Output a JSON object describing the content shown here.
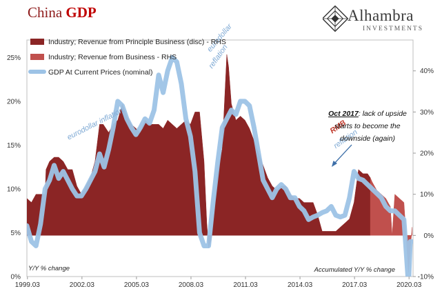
{
  "header": {
    "title_main": "China",
    "title_bold": "GDP",
    "logo_name": "Alhambra",
    "logo_sub": "INVESTMENTS"
  },
  "chart_data": {
    "type": "area",
    "title": "China GDP",
    "left_axis": {
      "label": "Y/Y % change",
      "range": [
        0,
        27
      ],
      "ticks": [
        "0%",
        "5%",
        "10%",
        "15%",
        "20%",
        "25%"
      ]
    },
    "right_axis": {
      "label": "Accumulated Y/Y % change",
      "range": [
        -10,
        47.5
      ],
      "ticks": [
        "-10%",
        "0%",
        "10%",
        "20%",
        "30%",
        "40%"
      ]
    },
    "x_axis": {
      "range": [
        1999.0,
        2020.25
      ],
      "ticks": [
        "1999.03",
        "2002.03",
        "2005.03",
        "2008.03",
        "2011.03",
        "2014.03",
        "2017.03",
        "2020.03"
      ]
    },
    "legend": {
      "placement": "top-left",
      "items": [
        {
          "name": "Industry; Revenue from Principle Business (disc) - RHS",
          "color": "#8b2525",
          "kind": "area"
        },
        {
          "name": "Industry; Revenue from Business - RHS",
          "color": "#c0504d",
          "kind": "area"
        },
        {
          "name": "GDP At Current Prices (nominal)",
          "color": "#9dc3e6",
          "kind": "line"
        }
      ]
    },
    "series": [
      {
        "name": "Industry; Revenue from Principle Business (disc) - RHS",
        "axis": "right",
        "color": "#8b2525",
        "x": [
          1999.0,
          1999.25,
          1999.5,
          1999.75,
          2000.0,
          2000.05,
          2000.25,
          2000.5,
          2000.75,
          2001.0,
          2001.25,
          2001.5,
          2001.75,
          2002.0,
          2002.25,
          2002.5,
          2002.75,
          2003.0,
          2003.2,
          2003.5,
          2003.75,
          2004.0,
          2004.25,
          2004.5,
          2004.75,
          2005.0,
          2005.25,
          2005.5,
          2005.75,
          2006.0,
          2006.25,
          2006.5,
          2006.75,
          2007.0,
          2007.25,
          2007.5,
          2007.75,
          2008.0,
          2008.25,
          2008.5,
          2008.75,
          2008.9,
          2009.0,
          2009.15,
          2009.3,
          2009.5,
          2009.75,
          2010.0,
          2010.1,
          2010.25,
          2010.5,
          2010.75,
          2011.0,
          2011.25,
          2011.5,
          2011.75,
          2012.0,
          2012.25,
          2012.5,
          2012.75,
          2013.0,
          2013.25,
          2013.5,
          2013.75,
          2014.0,
          2014.25,
          2014.5,
          2014.75,
          2015.0,
          2015.25,
          2015.5,
          2015.75,
          2016.0,
          2016.25,
          2016.5,
          2016.75,
          2017.0,
          2017.25,
          2017.5,
          2017.75,
          2017.9
        ],
        "values": [
          9,
          8,
          10,
          10,
          10,
          16,
          18,
          19,
          19,
          18,
          16,
          16,
          12,
          10,
          12,
          14,
          18,
          27,
          27,
          25,
          27,
          28,
          32,
          29,
          27,
          26,
          25,
          28,
          27,
          27,
          27,
          26,
          28,
          27,
          26,
          27,
          28,
          27,
          30,
          30,
          18,
          3,
          -3,
          -1,
          5,
          15,
          21,
          44,
          41,
          32,
          28,
          29,
          28,
          26,
          23,
          20,
          17,
          14,
          12,
          11,
          12,
          12,
          10,
          9,
          9,
          8,
          8,
          8,
          5,
          1,
          1,
          1,
          1,
          2,
          3,
          4,
          8,
          16,
          15,
          15,
          14
        ]
      },
      {
        "name": "Industry; Revenue from Business - RHS",
        "axis": "right",
        "color": "#c0504d",
        "x": [
          2017.9,
          2018.0,
          2018.25,
          2018.5,
          2018.75,
          2019.0,
          2019.1,
          2019.25,
          2019.5,
          2019.75,
          2020.0,
          2020.2
        ],
        "values": [
          14,
          13,
          11,
          10,
          9,
          7,
          0,
          10,
          9,
          8,
          -9,
          2
        ]
      },
      {
        "name": "GDP At Current Prices (nominal)",
        "axis": "left",
        "color": "#9dc3e6",
        "x": [
          1999.0,
          1999.25,
          1999.5,
          1999.75,
          2000.0,
          2000.25,
          2000.5,
          2000.75,
          2001.0,
          2001.25,
          2001.5,
          2001.75,
          2002.0,
          2002.25,
          2002.5,
          2002.75,
          2003.0,
          2003.25,
          2003.5,
          2003.75,
          2004.0,
          2004.25,
          2004.5,
          2004.75,
          2005.0,
          2005.25,
          2005.5,
          2005.75,
          2006.0,
          2006.25,
          2006.5,
          2006.75,
          2007.0,
          2007.25,
          2007.5,
          2007.75,
          2008.0,
          2008.25,
          2008.5,
          2008.75,
          2009.0,
          2009.25,
          2009.5,
          2009.75,
          2010.0,
          2010.25,
          2010.5,
          2010.75,
          2011.0,
          2011.25,
          2011.5,
          2011.75,
          2012.0,
          2012.25,
          2012.5,
          2012.75,
          2013.0,
          2013.25,
          2013.5,
          2013.75,
          2014.0,
          2014.25,
          2014.5,
          2014.75,
          2015.0,
          2015.25,
          2015.5,
          2015.75,
          2016.0,
          2016.25,
          2016.5,
          2016.75,
          2017.0,
          2017.25,
          2017.5,
          2017.75,
          2018.0,
          2018.25,
          2018.5,
          2018.75,
          2019.0,
          2019.25,
          2019.5,
          2019.75,
          2020.0,
          2020.1,
          2020.2
        ],
        "values": [
          5.8,
          4.0,
          3.5,
          6.0,
          10.0,
          11.0,
          12.7,
          11.2,
          12.0,
          11.0,
          10.0,
          9.2,
          9.2,
          10.0,
          11.0,
          12.0,
          14.0,
          12.5,
          14.5,
          17.0,
          20.0,
          19.5,
          18.0,
          17.0,
          16.2,
          17.0,
          18.0,
          17.5,
          19.0,
          23.0,
          21.0,
          23.5,
          25.0,
          24.5,
          22.0,
          18.0,
          16.0,
          12.0,
          5.0,
          3.5,
          3.5,
          8.5,
          13.0,
          17.0,
          18.0,
          19.0,
          18.5,
          20.0,
          20.0,
          19.5,
          17.0,
          14.0,
          11.0,
          10.0,
          9.0,
          10.0,
          10.5,
          10.0,
          9.0,
          9.0,
          8.0,
          7.5,
          6.5,
          6.8,
          7.0,
          7.3,
          7.5,
          8.0,
          7.0,
          6.8,
          7.0,
          9.0,
          12.0,
          11.2,
          11.0,
          10.5,
          10.0,
          9.5,
          9.0,
          8.0,
          7.5,
          7.5,
          7.0,
          6.5,
          -1.0,
          4.0,
          4.0
        ]
      }
    ],
    "annotations": [
      {
        "text": "eurodollar inflation",
        "color": "#7ea9d4",
        "x": 2001.3,
        "axis": "left",
        "y": 15.6,
        "angle": -27
      },
      {
        "text": "eurodollar",
        "color": "#7ea9d4",
        "x": 2009.1,
        "axis": "left",
        "y": 25.6,
        "angle": -50
      },
      {
        "text": "reflation",
        "color": "#7ea9d4",
        "x": 2009.2,
        "axis": "left",
        "y": 23.7,
        "angle": -55
      },
      {
        "text": "RMB",
        "color": "#c0392b",
        "x": 2015.8,
        "axis": "left",
        "y": 16.3,
        "angle": -35
      },
      {
        "text": "reflation",
        "color": "#7ea9d4",
        "x": 2016.0,
        "axis": "left",
        "y": 14.6,
        "angle": -35
      }
    ],
    "callout": {
      "bold": "Oct 2017",
      "lines": [
        ": lack of upside",
        "starts to become the",
        "downside (again)"
      ]
    }
  }
}
